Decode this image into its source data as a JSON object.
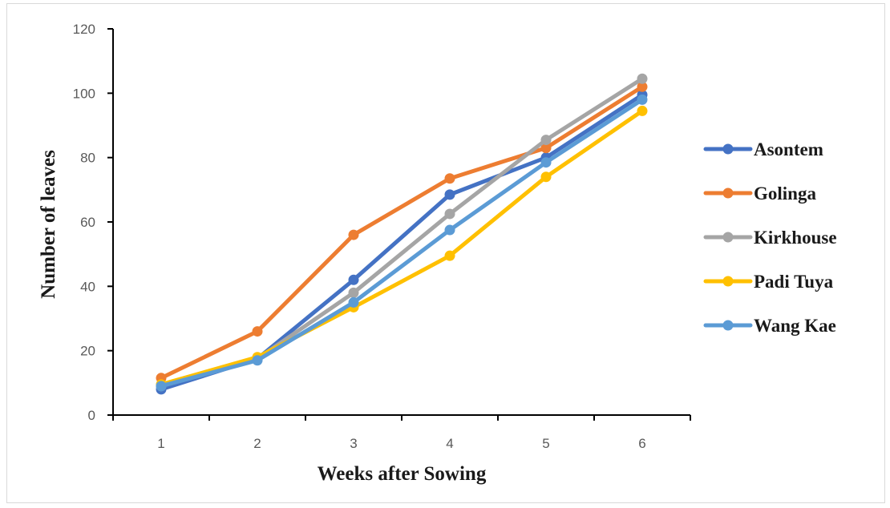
{
  "chart_data": {
    "type": "line",
    "title": "",
    "xlabel": "Weeks after Sowing",
    "ylabel": "Number of leaves",
    "x": [
      1,
      2,
      3,
      4,
      5,
      6
    ],
    "x_tick_labels": [
      "1",
      "2",
      "3",
      "4",
      "5",
      "6"
    ],
    "ylim": [
      0,
      120
    ],
    "y_ticks": [
      0,
      20,
      40,
      60,
      80,
      100,
      120
    ],
    "grid": false,
    "legend_position": "right",
    "series": [
      {
        "name": "Asontem",
        "color": "#4472C4",
        "values": [
          8,
          17.5,
          42,
          68.5,
          80,
          99.5
        ]
      },
      {
        "name": "Golinga",
        "color": "#ED7D31",
        "values": [
          11.5,
          26,
          56,
          73.5,
          83,
          102
        ]
      },
      {
        "name": "Kirkhouse",
        "color": "#A5A5A5",
        "values": [
          9,
          17.5,
          38,
          62.5,
          85.5,
          104.5
        ]
      },
      {
        "name": "Padi Tuya",
        "color": "#FFC000",
        "values": [
          9.5,
          18,
          33.5,
          49.5,
          74,
          94.5
        ]
      },
      {
        "name": "Wang Kae",
        "color": "#5B9BD5",
        "values": [
          9,
          17,
          35,
          57.5,
          78.5,
          98
        ]
      }
    ]
  }
}
